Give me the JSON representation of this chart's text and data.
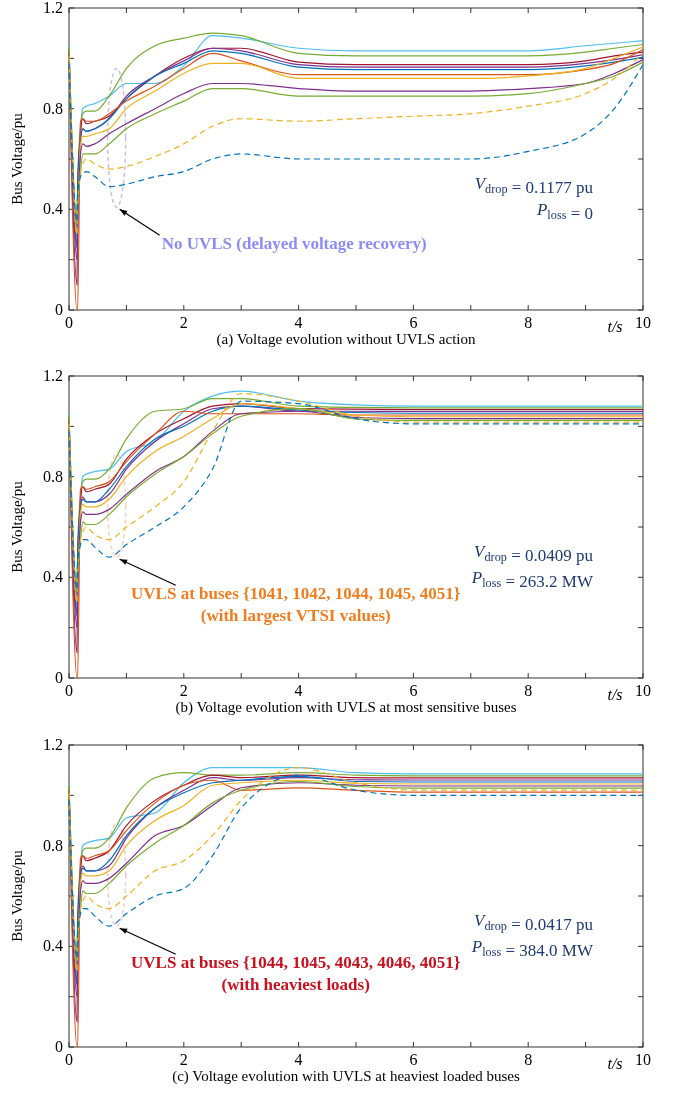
{
  "chart_data": [
    {
      "type": "line",
      "title": "(a) Voltage evolution without UVLS action",
      "xlabel": "t/s",
      "ylabel": "Bus Voltage/pu",
      "x": [
        0,
        0.14,
        0.15,
        0.2,
        0.24,
        0.3,
        0.45,
        0.7,
        1,
        1.5,
        2,
        2.5,
        3,
        4,
        5,
        6,
        7,
        8,
        9,
        9.5,
        10
      ],
      "xlim": [
        0,
        10
      ],
      "ylim": [
        0,
        1.2
      ],
      "xticks": [
        0,
        {
          "value": 1,
          "label": null
        },
        2,
        {
          "value": 3,
          "label": null
        },
        4,
        {
          "value": 5,
          "label": null
        },
        6,
        {
          "value": 7,
          "label": null
        },
        8,
        {
          "value": 9,
          "label": null
        },
        10
      ],
      "yticks": [
        0,
        {
          "value": 0.2,
          "label": null
        },
        0.4,
        {
          "value": 0.6,
          "label": null
        },
        0.8,
        {
          "value": 1,
          "label": null
        },
        1.2
      ],
      "annotations": [
        "No UVLS (delayed voltage recovery)",
        "V$_{drop}$ = 0.1177 pu",
        "P$_{loss}$ = 0"
      ],
      "series": [
        {
          "color": "#4dbeee",
          "values": [
            1.05,
            0.3,
            0.5,
            0.72,
            0.8,
            0.81,
            0.82,
            0.85,
            0.9,
            0.9,
            0.97,
            1.09,
            1.08,
            1.04,
            1.03,
            1.03,
            1.03,
            1.03,
            1.05,
            1.06,
            1.07
          ]
        },
        {
          "color": "#77ac30",
          "values": [
            1.04,
            0.3,
            0.5,
            0.72,
            0.78,
            0.79,
            0.79,
            0.85,
            0.96,
            1.05,
            1.08,
            1.1,
            1.09,
            1.02,
            1.01,
            1.01,
            1.01,
            1.01,
            1.025,
            1.04,
            1.055
          ]
        },
        {
          "color": "#a2142f",
          "values": [
            1.02,
            0.25,
            0.45,
            0.7,
            0.76,
            0.74,
            0.75,
            0.77,
            0.84,
            0.93,
            1,
            1.04,
            1.04,
            0.985,
            0.975,
            0.975,
            0.975,
            0.975,
            0.99,
            1.01,
            1.025
          ]
        },
        {
          "color": "#7e2f8e",
          "values": [
            1.01,
            0.1,
            0.4,
            0.68,
            0.72,
            0.71,
            0.72,
            0.76,
            0.85,
            0.93,
            0.99,
            1.04,
            1.03,
            0.975,
            0.965,
            0.965,
            0.965,
            0.965,
            0.98,
            0.995,
            1.015
          ]
        },
        {
          "color": "#0072bd",
          "values": [
            1.02,
            0.25,
            0.45,
            0.68,
            0.72,
            0.71,
            0.72,
            0.76,
            0.84,
            0.93,
            0.98,
            1.03,
            1.02,
            0.965,
            0.955,
            0.955,
            0.955,
            0.955,
            0.97,
            0.985,
            1.005
          ]
        },
        {
          "color": "#d95319",
          "values": [
            1.03,
            0,
            0,
            0.75,
            0.76,
            0.75,
            0.75,
            0.78,
            0.83,
            0.89,
            0.96,
            1.02,
            0.99,
            0.935,
            0.935,
            0.935,
            0.935,
            0.935,
            0.955,
            0.98,
            1.035
          ]
        },
        {
          "color": "#edb120",
          "values": [
            1,
            0.3,
            0.35,
            0.65,
            0.69,
            0.69,
            0.7,
            0.72,
            0.8,
            0.87,
            0.94,
            0.98,
            0.98,
            0.92,
            0.92,
            0.92,
            0.92,
            0.93,
            0.96,
            1,
            1.045
          ]
        },
        {
          "color": "#7e2f8e",
          "values": [
            1.02,
            0.2,
            0.3,
            0.62,
            0.66,
            0.65,
            0.66,
            0.7,
            0.74,
            0.8,
            0.86,
            0.9,
            0.9,
            0.88,
            0.87,
            0.87,
            0.87,
            0.88,
            0.9,
            0.94,
            0.995
          ]
        },
        {
          "color": "#77ac30",
          "values": [
            1.04,
            0.35,
            0.4,
            0.55,
            0.62,
            0.62,
            0.62,
            0.66,
            0.72,
            0.78,
            0.83,
            0.88,
            0.88,
            0.85,
            0.85,
            0.85,
            0.85,
            0.86,
            0.9,
            0.93,
            0.985
          ]
        },
        {
          "color": "#edb120",
          "line_style": "dashed",
          "values": [
            1.01,
            0.3,
            0.4,
            0.55,
            0.58,
            0.6,
            0.58,
            0.56,
            0.57,
            0.61,
            0.66,
            0.73,
            0.76,
            0.75,
            0.76,
            0.77,
            0.78,
            0.81,
            0.86,
            0.92,
            1.02
          ]
        },
        {
          "color": "#0072bd",
          "line_style": "dashed",
          "values": [
            0.98,
            0.35,
            0.45,
            0.53,
            0.54,
            0.55,
            0.53,
            0.49,
            0.5,
            0.53,
            0.55,
            0.6,
            0.62,
            0.6,
            0.6,
            0.6,
            0.6,
            0.63,
            0.7,
            0.8,
            0.975
          ]
        }
      ]
    },
    {
      "type": "line",
      "title": "(b) Voltage evolution with UVLS at most sensitive buses",
      "xlabel": "t/s",
      "ylabel": "Bus Voltage/pu",
      "x": [
        0,
        0.14,
        0.15,
        0.2,
        0.24,
        0.3,
        0.45,
        0.7,
        1,
        1.5,
        2,
        2.5,
        3,
        4,
        5,
        6,
        7,
        8,
        9,
        9.5,
        10
      ],
      "xlim": [
        0,
        10
      ],
      "ylim": [
        0,
        1.2
      ],
      "xticks": [
        0,
        {
          "value": 1,
          "label": null
        },
        2,
        {
          "value": 3,
          "label": null
        },
        4,
        {
          "value": 5,
          "label": null
        },
        6,
        {
          "value": 7,
          "label": null
        },
        8,
        {
          "value": 9,
          "label": null
        },
        10
      ],
      "yticks": [
        0,
        {
          "value": 0.2,
          "label": null
        },
        0.4,
        {
          "value": 0.6,
          "label": null
        },
        0.8,
        {
          "value": 1,
          "label": null
        },
        1.2
      ],
      "annotations": [
        "UVLS at buses {1041, 1042, 1044, 1045, 4051}\n(with largest VTSI values)",
        "V$_{drop}$ = 0.0409 pu",
        "P$_{loss}$ = 263.2 MW"
      ],
      "series": [
        {
          "color": "#4dbeee",
          "values": [
            1.05,
            0.3,
            0.5,
            0.72,
            0.8,
            0.81,
            0.82,
            0.83,
            0.9,
            0.94,
            1.06,
            1.12,
            1.14,
            1.1,
            1.085,
            1.08,
            1.08,
            1.08,
            1.08,
            1.08,
            1.08
          ]
        },
        {
          "color": "#77ac30",
          "values": [
            1.04,
            0.3,
            0.5,
            0.72,
            0.78,
            0.79,
            0.79,
            0.83,
            0.95,
            1.06,
            1.07,
            1.11,
            1.11,
            1.08,
            1.075,
            1.073,
            1.073,
            1.073,
            1.073,
            1.073,
            1.073
          ]
        },
        {
          "color": "#a2142f",
          "values": [
            1.02,
            0.25,
            0.45,
            0.7,
            0.76,
            0.74,
            0.75,
            0.77,
            0.87,
            0.97,
            1.03,
            1.08,
            1.09,
            1.07,
            1.068,
            1.066,
            1.066,
            1.066,
            1.066,
            1.066,
            1.066
          ]
        },
        {
          "color": "#7e2f8e",
          "values": [
            1.01,
            0.1,
            0.4,
            0.68,
            0.72,
            0.7,
            0.7,
            0.73,
            0.83,
            0.94,
            1.01,
            1.07,
            1.08,
            1.06,
            1.06,
            1.059,
            1.059,
            1.059,
            1.059,
            1.059,
            1.059
          ]
        },
        {
          "color": "#0072bd",
          "values": [
            1.02,
            0.25,
            0.45,
            0.68,
            0.71,
            0.7,
            0.7,
            0.75,
            0.84,
            0.95,
            1,
            1.06,
            1.08,
            1.065,
            1.055,
            1.052,
            1.052,
            1.052,
            1.052,
            1.052,
            1.052
          ]
        },
        {
          "color": "#d95319",
          "values": [
            1.03,
            0,
            0,
            0.75,
            0.76,
            0.75,
            0.76,
            0.78,
            0.86,
            0.97,
            1.06,
            1.05,
            1.05,
            1.05,
            1.045,
            1.045,
            1.045,
            1.045,
            1.045,
            1.045,
            1.045
          ]
        },
        {
          "color": "#edb120",
          "values": [
            1,
            0.3,
            0.35,
            0.65,
            0.69,
            0.68,
            0.68,
            0.71,
            0.8,
            0.9,
            0.96,
            1.03,
            1.09,
            1.07,
            1.045,
            1.038,
            1.038,
            1.038,
            1.038,
            1.038,
            1.038
          ]
        },
        {
          "color": "#7e2f8e",
          "values": [
            1.02,
            0.2,
            0.3,
            0.62,
            0.66,
            0.65,
            0.65,
            0.67,
            0.73,
            0.82,
            0.88,
            0.98,
            1.05,
            1.06,
            1.035,
            1.031,
            1.031,
            1.031,
            1.031,
            1.031,
            1.031
          ]
        },
        {
          "color": "#77ac30",
          "values": [
            1.04,
            0.35,
            0.4,
            0.55,
            0.62,
            0.61,
            0.61,
            0.65,
            0.72,
            0.81,
            0.88,
            0.97,
            1.04,
            1.07,
            1.03,
            1.024,
            1.024,
            1.024,
            1.024,
            1.024,
            1.024
          ]
        },
        {
          "color": "#edb120",
          "line_style": "dashed",
          "values": [
            1.01,
            0.3,
            0.4,
            0.55,
            0.58,
            0.6,
            0.57,
            0.55,
            0.6,
            0.68,
            0.78,
            0.98,
            1.13,
            1.1,
            1.04,
            1.017,
            1.017,
            1.017,
            1.017,
            1.017,
            1.017
          ]
        },
        {
          "color": "#0072bd",
          "line_style": "dashed",
          "values": [
            0.98,
            0.35,
            0.45,
            0.53,
            0.55,
            0.55,
            0.52,
            0.48,
            0.53,
            0.6,
            0.68,
            0.83,
            1.1,
            1.09,
            1.03,
            1.01,
            1.01,
            1.01,
            1.01,
            1.01,
            1.01
          ]
        }
      ]
    },
    {
      "type": "line",
      "title": "(c) Voltage evolution with UVLS at heaviest loaded buses",
      "xlabel": "t/s",
      "ylabel": "Bus Voltage/pu",
      "x": [
        0,
        0.14,
        0.15,
        0.2,
        0.24,
        0.3,
        0.45,
        0.7,
        1,
        1.5,
        2,
        2.5,
        3,
        4,
        5,
        6,
        7,
        8,
        9,
        9.5,
        10
      ],
      "xlim": [
        0,
        10
      ],
      "ylim": [
        0,
        1.2
      ],
      "xticks": [
        0,
        {
          "value": 1,
          "label": null
        },
        2,
        {
          "value": 3,
          "label": null
        },
        4,
        {
          "value": 5,
          "label": null
        },
        6,
        {
          "value": 7,
          "label": null
        },
        8,
        {
          "value": 9,
          "label": null
        },
        10
      ],
      "yticks": [
        0,
        {
          "value": 0.2,
          "label": null
        },
        0.4,
        {
          "value": 0.6,
          "label": null
        },
        0.8,
        {
          "value": 1,
          "label": null
        },
        1.2
      ],
      "annotations": [
        "UVLS at buses {1044, 1045, 4043, 4046, 4051}\n(with heaviest loads)",
        "V$_{drop}$ = 0.0417 pu",
        "P$_{loss}$ = 384.0 MW"
      ],
      "series": [
        {
          "color": "#4dbeee",
          "values": [
            1.05,
            0.3,
            0.5,
            0.72,
            0.8,
            0.81,
            0.82,
            0.83,
            0.91,
            0.93,
            1.05,
            1.11,
            1.11,
            1.11,
            1.09,
            1.085,
            1.085,
            1.085,
            1.085,
            1.085,
            1.085
          ]
        },
        {
          "color": "#77ac30",
          "values": [
            1.04,
            0.3,
            0.5,
            0.72,
            0.78,
            0.79,
            0.79,
            0.83,
            0.95,
            1.07,
            1.09,
            1.08,
            1.08,
            1.09,
            1.08,
            1.077,
            1.077,
            1.077,
            1.077,
            1.077,
            1.077
          ]
        },
        {
          "color": "#a2142f",
          "values": [
            1.02,
            0.25,
            0.45,
            0.7,
            0.76,
            0.74,
            0.75,
            0.78,
            0.88,
            0.98,
            1.04,
            1.08,
            1.07,
            1.08,
            1.07,
            1.069,
            1.069,
            1.069,
            1.069,
            1.069,
            1.069
          ]
        },
        {
          "color": "#7e2f8e",
          "values": [
            1.01,
            0.1,
            0.4,
            0.68,
            0.72,
            0.7,
            0.7,
            0.72,
            0.83,
            0.95,
            1.02,
            1.07,
            1.06,
            1.07,
            1.062,
            1.061,
            1.061,
            1.061,
            1.061,
            1.061,
            1.061
          ]
        },
        {
          "color": "#0072bd",
          "values": [
            1.02,
            0.25,
            0.45,
            0.68,
            0.71,
            0.7,
            0.7,
            0.74,
            0.84,
            0.95,
            1.01,
            1.05,
            1.06,
            1.075,
            1.055,
            1.053,
            1.053,
            1.053,
            1.053,
            1.053,
            1.053
          ]
        },
        {
          "color": "#d95319",
          "values": [
            1.03,
            0,
            0,
            0.75,
            0.76,
            0.75,
            0.76,
            0.78,
            0.86,
            0.97,
            1.04,
            1.06,
            1.02,
            1.03,
            1.02,
            1.013,
            1.013,
            1.013,
            1.013,
            1.013,
            1.013
          ]
        },
        {
          "color": "#edb120",
          "values": [
            1,
            0.3,
            0.35,
            0.65,
            0.69,
            0.68,
            0.68,
            0.7,
            0.8,
            0.9,
            0.96,
            1.04,
            1.05,
            1.06,
            1.048,
            1.045,
            1.045,
            1.045,
            1.045,
            1.045,
            1.045
          ]
        },
        {
          "color": "#7e2f8e",
          "values": [
            1.02,
            0.2,
            0.3,
            0.62,
            0.66,
            0.65,
            0.65,
            0.67,
            0.73,
            0.84,
            0.88,
            0.96,
            1.03,
            1.05,
            1.04,
            1.037,
            1.037,
            1.037,
            1.037,
            1.037,
            1.037
          ]
        },
        {
          "color": "#77ac30",
          "values": [
            1.04,
            0.35,
            0.4,
            0.55,
            0.62,
            0.61,
            0.61,
            0.65,
            0.72,
            0.81,
            0.88,
            0.97,
            1.02,
            1.055,
            1.035,
            1.029,
            1.029,
            1.029,
            1.029,
            1.029,
            1.029
          ]
        },
        {
          "color": "#edb120",
          "line_style": "dashed",
          "values": [
            1.01,
            0.3,
            0.4,
            0.55,
            0.58,
            0.6,
            0.57,
            0.55,
            0.6,
            0.7,
            0.74,
            0.84,
            0.98,
            1.11,
            1.05,
            1.021,
            1.021,
            1.021,
            1.021,
            1.021,
            1.021
          ]
        },
        {
          "color": "#0072bd",
          "line_style": "dashed",
          "values": [
            0.98,
            0.35,
            0.45,
            0.53,
            0.55,
            0.55,
            0.52,
            0.48,
            0.53,
            0.6,
            0.63,
            0.76,
            0.95,
            1.08,
            1.02,
            1,
            1,
            1,
            1,
            1,
            1
          ]
        }
      ]
    }
  ]
}
